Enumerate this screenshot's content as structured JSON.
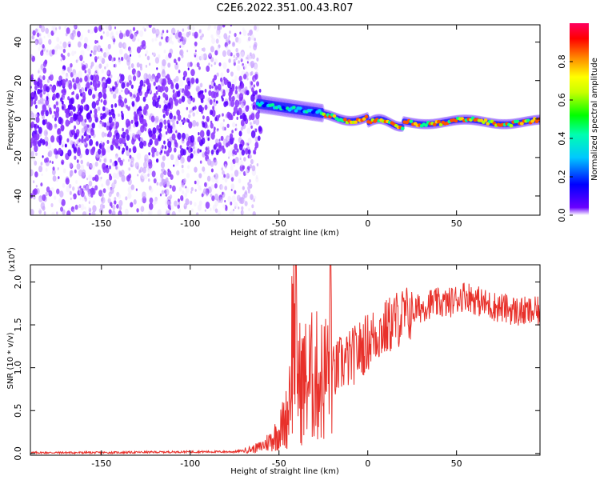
{
  "page": {
    "title": "C2E6.2022.351.00.43.R07"
  },
  "chart_data": [
    {
      "type": "heatmap",
      "name": "spectrogram",
      "title": "C2E6.2022.351.00.43.R07",
      "xlabel": "Height of straight line (km)",
      "ylabel": "Frequency (Hz)",
      "xlim": [
        -190,
        97
      ],
      "ylim": [
        -50,
        49
      ],
      "xticks": [
        -150,
        -100,
        -50,
        0,
        50
      ],
      "yticks": [
        -40,
        -20,
        0,
        20,
        40
      ],
      "colorbar": {
        "label": "Normalized spectral amplitude",
        "range": [
          0.0,
          1.0
        ],
        "ticks": [
          0.0,
          0.2,
          0.4,
          0.6,
          0.8
        ],
        "tick_labels": [
          "0.0",
          "0.2",
          "0.4",
          "0.6",
          "0.8"
        ],
        "colormap": "rainbow-violet-to-red"
      },
      "regions": [
        {
          "x_range": [
            -190,
            -62
          ],
          "freq_spread": [
            -50,
            49
          ],
          "amplitude": "0.1-0.3",
          "description_color": "purple noise"
        },
        {
          "x_range": [
            -62,
            -25
          ],
          "center_freq": [
            8,
            2
          ],
          "amplitude": "0.3-0.9"
        },
        {
          "x_range": [
            -25,
            97
          ],
          "center_freq": [
            1,
            -2
          ],
          "amplitude": "0.4-1.0"
        }
      ]
    },
    {
      "type": "line",
      "name": "snr",
      "xlabel": "Height of straight line (km)",
      "ylabel": "SNR (10 * v/v)",
      "yscale_label": "(x10",
      "yscale_exp": "4",
      "yscale_suffix": ")",
      "xlim": [
        -190,
        97
      ],
      "ylim": [
        -0.02,
        2.2
      ],
      "xticks": [
        -150,
        -100,
        -50,
        0,
        50
      ],
      "yticks": [
        0.0,
        0.5,
        1.0,
        1.5,
        2.0
      ],
      "ytick_labels": [
        "0.0",
        "0.5",
        "1.0",
        "1.5",
        "2.0"
      ],
      "line_color": "#e8302a",
      "series": [
        {
          "name": "SNR",
          "x": [
            -190,
            -150,
            -100,
            -75,
            -65,
            -60,
            -55,
            -50,
            -45,
            -42,
            -41,
            -40,
            -38,
            -35,
            -30,
            -25,
            -22,
            -21,
            -20,
            -15,
            -10,
            -5,
            0,
            5,
            10,
            15,
            20,
            25,
            30,
            35,
            40,
            45,
            50,
            55,
            60,
            65,
            70,
            75,
            80,
            85,
            90,
            97
          ],
          "y": [
            0.01,
            0.01,
            0.02,
            0.02,
            0.05,
            0.08,
            0.15,
            0.25,
            0.45,
            1.5,
            1.7,
            1.1,
            0.8,
            0.85,
            0.9,
            0.85,
            1.0,
            2.2,
            0.9,
            1.05,
            1.1,
            1.2,
            1.3,
            1.4,
            1.45,
            1.55,
            1.6,
            1.65,
            1.7,
            1.75,
            1.75,
            1.75,
            1.8,
            1.85,
            1.8,
            1.75,
            1.72,
            1.7,
            1.68,
            1.65,
            1.65,
            1.65
          ]
        }
      ]
    }
  ]
}
